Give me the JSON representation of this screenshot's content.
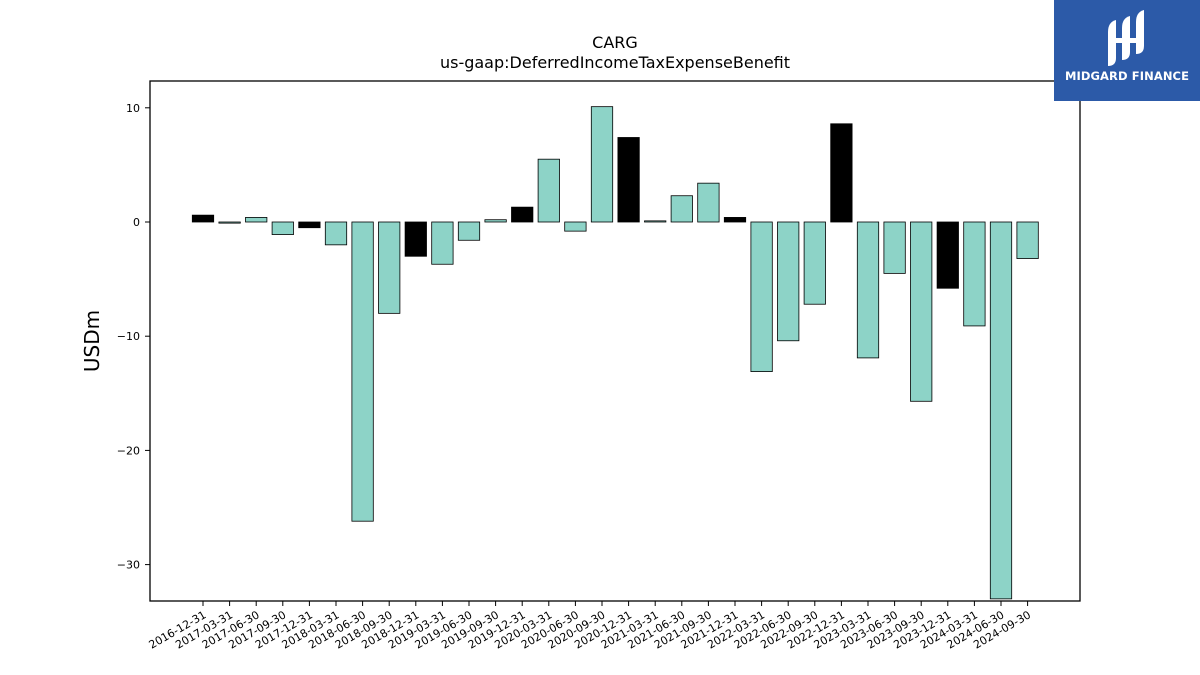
{
  "chart_data": {
    "type": "bar",
    "title": "CARG",
    "subtitle": "us-gaap:DeferredIncomeTaxExpenseBenefit",
    "xlabel": "",
    "ylabel": "USDm",
    "ylim": [
      -33,
      12.4
    ],
    "yticks": [
      10,
      0,
      -10,
      -20,
      -30
    ],
    "ytick_labels": [
      "10",
      "0",
      "−10",
      "−20",
      "−30"
    ],
    "grid": false,
    "categories": [
      "2016-12-31",
      "2017-03-31",
      "2017-06-30",
      "2017-09-30",
      "2017-12-31",
      "2018-03-31",
      "2018-06-30",
      "2018-09-30",
      "2018-12-31",
      "2019-03-31",
      "2019-06-30",
      "2019-09-30",
      "2019-12-31",
      "2020-03-31",
      "2020-06-30",
      "2020-09-30",
      "2020-12-31",
      "2021-03-31",
      "2021-06-30",
      "2021-09-30",
      "2021-12-31",
      "2022-03-31",
      "2022-06-30",
      "2022-09-30",
      "2022-12-31",
      "2023-03-31",
      "2023-06-30",
      "2023-09-30",
      "2023-12-31",
      "2024-03-31",
      "2024-06-30",
      "2024-09-30"
    ],
    "values": [
      0.6,
      -0.1,
      0.4,
      -1.1,
      -0.5,
      -2.0,
      -26.2,
      -8.0,
      -3.0,
      -3.7,
      -1.6,
      0.2,
      1.3,
      5.5,
      -0.8,
      10.1,
      7.4,
      0.1,
      2.3,
      3.4,
      0.4,
      -13.1,
      -10.4,
      -7.2,
      8.6,
      -11.9,
      -4.5,
      -15.7,
      -5.8,
      -9.1,
      -33.0,
      -3.2
    ],
    "highlight": [
      true,
      false,
      false,
      false,
      true,
      false,
      false,
      false,
      true,
      false,
      false,
      false,
      true,
      false,
      false,
      false,
      true,
      false,
      false,
      false,
      true,
      false,
      false,
      false,
      true,
      false,
      false,
      false,
      true,
      false,
      false,
      false
    ],
    "colors": {
      "bar": "#8dd3c7",
      "highlight": "#000000",
      "edge": "#000000"
    }
  },
  "logo": {
    "text": "MIDGARD FINANCE",
    "bg": "#2c5aa8"
  }
}
